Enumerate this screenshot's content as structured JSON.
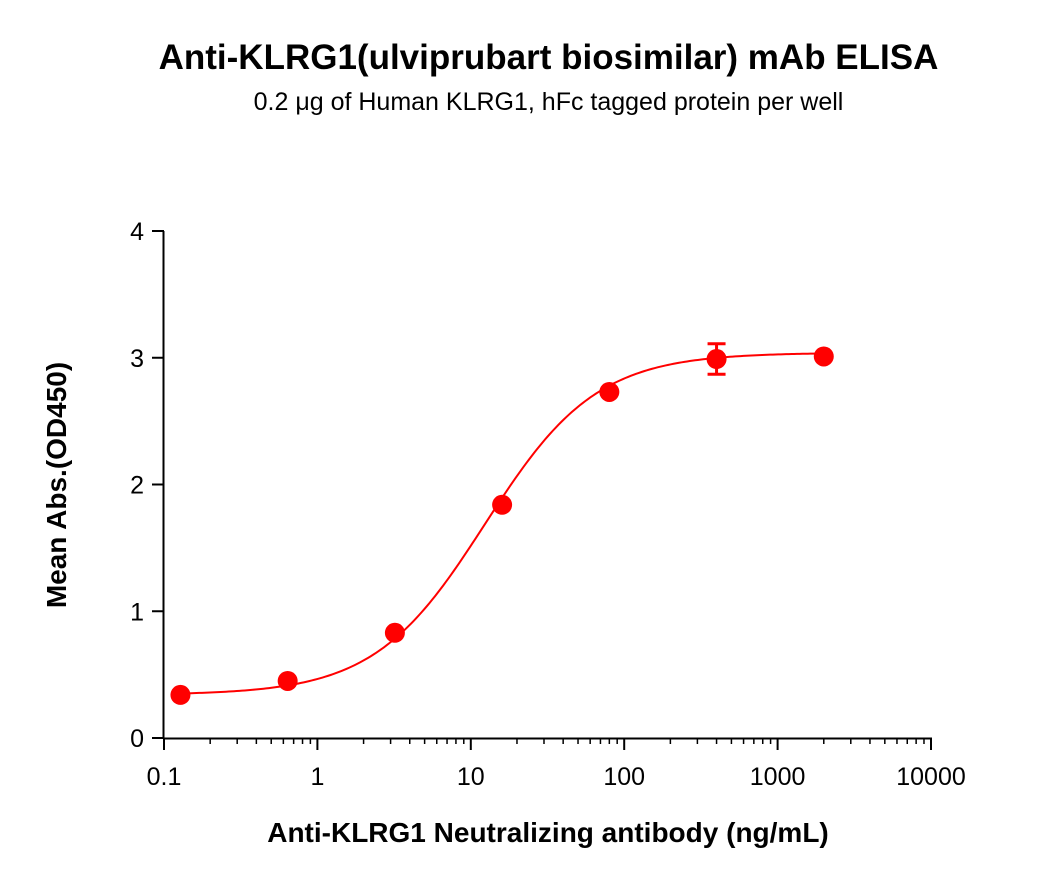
{
  "chart_data": {
    "type": "scatter",
    "title": "Anti-KLRG1(ulviprubart biosimilar) mAb ELISA",
    "subtitle": "0.2 μg of Human KLRG1, hFc tagged protein per well",
    "xlabel": "Anti-KLRG1 Neutralizing antibody (ng/mL)",
    "ylabel": "Mean Abs.(OD450)",
    "xscale": "log",
    "xlim": [
      0.1,
      10000
    ],
    "ylim": [
      0,
      4
    ],
    "xticks": [
      "0.1",
      "1",
      "10",
      "100",
      "1000",
      "10000"
    ],
    "yticks": [
      "0",
      "1",
      "2",
      "3",
      "4"
    ],
    "grid": false,
    "legend": "none",
    "color": "#ff0000",
    "series": [
      {
        "x": [
          0.128,
          0.64,
          3.2,
          16,
          80,
          400,
          2000
        ],
        "y": [
          0.34,
          0.45,
          0.83,
          1.84,
          2.73,
          2.99,
          3.01
        ],
        "error": [
          0,
          0,
          0,
          0,
          0,
          0.12,
          0
        ],
        "fit": "4PL"
      }
    ]
  }
}
